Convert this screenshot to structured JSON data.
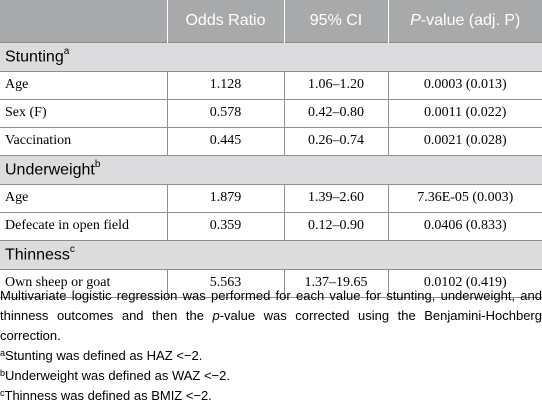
{
  "header": {
    "col1": "",
    "col2": "Odds Ratio",
    "col3": "95% CI",
    "col4_italic": "P",
    "col4_rest": "-value (adj. P)"
  },
  "sections": [
    {
      "title": "Stunting",
      "sup": "a",
      "rows": [
        {
          "label": "Age",
          "or": "1.128",
          "ci": "1.06–1.20",
          "p": "0.0003 (0.013)"
        },
        {
          "label": "Sex (F)",
          "or": "0.578",
          "ci": "0.42–0.80",
          "p": "0.0011 (0.022)"
        },
        {
          "label": "Vaccination",
          "or": "0.445",
          "ci": "0.26–0.74",
          "p": "0.0021 (0.028)"
        }
      ]
    },
    {
      "title": "Underweight",
      "sup": "b",
      "rows": [
        {
          "label": "Age",
          "or": "1.879",
          "ci": "1.39–2.60",
          "p": "7.36E-05 (0.003)"
        },
        {
          "label": "Defecate in open field",
          "or": "0.359",
          "ci": "0.12–0.90",
          "p": "0.0406 (0.833)"
        }
      ]
    },
    {
      "title": "Thinness",
      "sup": "c",
      "rows": [
        {
          "label": "Own sheep or goat",
          "or": "5.563",
          "ci": "1.37–19.65",
          "p": "0.0102 (0.419)"
        }
      ]
    }
  ],
  "notes": {
    "main_part1": "Multivariate logistic regression was performed for each value for stunting, underweight, and thinness outcomes and then the ",
    "main_italic": "p",
    "main_part2": "-value was corrected using the Benjamini-Hochberg correction.",
    "footnotes": [
      {
        "sup": "a",
        "text": "Stunting was defined as HAZ <−2."
      },
      {
        "sup": "b",
        "text": "Underweight was defined as WAZ <−2."
      },
      {
        "sup": "c",
        "text": "Thinness was defined as BMIZ <−2."
      }
    ]
  }
}
